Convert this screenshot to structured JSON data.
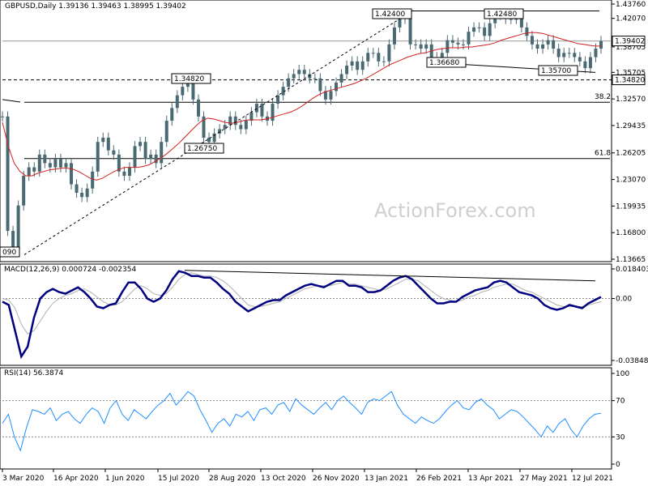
{
  "chart_header": "GBPUSD,Daily  1.39136 1.39463 1.38995 1.39402",
  "watermark": "ActionForex.com",
  "colors": {
    "candle": "#4a6a73",
    "ma": "#d12020",
    "macd": "#000080",
    "signal": "#b0b0b0",
    "rsi": "#1f8fff",
    "grid": "#c0c0c0"
  },
  "chart_data": [
    {
      "type": "candlestick",
      "title": "GBPUSD,Daily",
      "ohlc_last": {
        "open": 1.39136,
        "high": 1.39463,
        "low": 1.38995,
        "close": 1.39402
      },
      "x_ticks": [
        "3 Mar 2020",
        "16 Apr 2020",
        "1 Jun 2020",
        "15 Jul 2020",
        "28 Aug 2020",
        "13 Oct 2020",
        "26 Nov 2020",
        "13 Jan 2021",
        "26 Feb 2021",
        "13 Apr 2021",
        "27 May 2021",
        "12 Jul 2021"
      ],
      "y_ticks": [
        1.4376,
        1.4207,
        1.38705,
        1.35705,
        1.3257,
        1.29435,
        1.26205,
        1.2307,
        1.19935,
        1.168,
        1.13665
      ],
      "ylim": [
        1.13665,
        1.4376
      ],
      "current_price": 1.39402,
      "current_price_label": "1.39402",
      "level_label": "1.34820",
      "fib_labels": [
        {
          "label": "38.2",
          "value": 1.3218
        },
        {
          "label": "61.8",
          "value": 1.2554
        }
      ],
      "annotations": [
        {
          "label": "1.42400",
          "value": 1.424
        },
        {
          "label": "1.42480",
          "value": 1.4248
        },
        {
          "label": "1.34820",
          "value": 1.3482
        },
        {
          "label": "1.36680",
          "value": 1.3668
        },
        {
          "label": "1.35700",
          "value": 1.357
        },
        {
          "label": "1.26750",
          "value": 1.2675
        },
        {
          "label": "090",
          "value": 1.1409
        }
      ],
      "series": [
        {
          "name": "",
          "values": [
            1.305,
            1.17,
            1.148,
            1.2,
            1.235,
            1.245,
            1.24,
            1.26,
            1.25,
            1.245,
            1.255,
            1.245,
            1.25,
            1.225,
            1.215,
            1.21,
            1.22,
            1.24,
            1.275,
            1.28,
            1.265,
            1.26,
            1.24,
            1.235,
            1.245,
            1.27,
            1.275,
            1.255,
            1.26,
            1.25,
            1.275,
            1.3,
            1.315,
            1.33,
            1.34,
            1.35,
            1.325,
            1.305,
            1.28,
            1.275,
            1.285,
            1.29,
            1.295,
            1.305,
            1.295,
            1.29,
            1.3,
            1.31,
            1.32,
            1.305,
            1.3,
            1.32,
            1.33,
            1.34,
            1.35,
            1.355,
            1.36,
            1.355,
            1.35,
            1.35,
            1.335,
            1.325,
            1.335,
            1.345,
            1.355,
            1.365,
            1.37,
            1.36,
            1.37,
            1.38,
            1.38,
            1.37,
            1.37,
            1.39,
            1.41,
            1.42,
            1.424,
            1.39,
            1.39,
            1.385,
            1.39,
            1.375,
            1.37,
            1.38,
            1.395,
            1.392,
            1.39,
            1.39,
            1.405,
            1.41,
            1.41,
            1.4,
            1.415,
            1.425,
            1.4248,
            1.42,
            1.42,
            1.42,
            1.41,
            1.4,
            1.39,
            1.385,
            1.39,
            1.395,
            1.385,
            1.375,
            1.38,
            1.38,
            1.375,
            1.37,
            1.362,
            1.375,
            1.385,
            1.394
          ]
        },
        {
          "name": "",
          "values": [
            1.298,
            1.27,
            1.25,
            1.24,
            1.235,
            1.235,
            1.238,
            1.24,
            1.242,
            1.243,
            1.244,
            1.244,
            1.243,
            1.24,
            1.236,
            1.232,
            1.23,
            1.232,
            1.236,
            1.24,
            1.243,
            1.245,
            1.245,
            1.245,
            1.246,
            1.248,
            1.252,
            1.256,
            1.261,
            1.267,
            1.273,
            1.28,
            1.287,
            1.294,
            1.3,
            1.303,
            1.302,
            1.3,
            1.298,
            1.297,
            1.298,
            1.3,
            1.301,
            1.301,
            1.301,
            1.302,
            1.304,
            1.306,
            1.308,
            1.31,
            1.313,
            1.317,
            1.322,
            1.327,
            1.331,
            1.334,
            1.336,
            1.338,
            1.34,
            1.342,
            1.344,
            1.347,
            1.35,
            1.354,
            1.358,
            1.362,
            1.366,
            1.369,
            1.372,
            1.375,
            1.377,
            1.379,
            1.38,
            1.382,
            1.384,
            1.385,
            1.386,
            1.386,
            1.386,
            1.387,
            1.387,
            1.388,
            1.389,
            1.39,
            1.392,
            1.395,
            1.397,
            1.399,
            1.401,
            1.403,
            1.404,
            1.404,
            1.403,
            1.401,
            1.399,
            1.397,
            1.395,
            1.393,
            1.391,
            1.39,
            1.389,
            1.388,
            1.388
          ]
        }
      ]
    },
    {
      "type": "line",
      "title": "MACD(12,26,9) 0.000724 -0.002354",
      "y_ticks": [
        0.018403,
        0.0,
        -0.038483
      ],
      "y_tick_labels": [
        "0.018403",
        "0.00",
        "-0.038483"
      ],
      "ylim": [
        -0.038483,
        0.018403
      ],
      "series": [
        {
          "name": "",
          "values": [
            -0.002,
            -0.004,
            -0.02,
            -0.036,
            -0.03,
            -0.012,
            0.0,
            0.004,
            0.006,
            0.004,
            0.003,
            0.005,
            0.007,
            0.004,
            0.0,
            -0.005,
            -0.006,
            -0.004,
            -0.003,
            0.004,
            0.01,
            0.01,
            0.006,
            0.0,
            -0.002,
            0.0,
            0.005,
            0.012,
            0.017,
            0.016,
            0.014,
            0.014,
            0.013,
            0.013,
            0.01,
            0.006,
            0.003,
            -0.002,
            -0.005,
            -0.008,
            -0.006,
            -0.004,
            -0.002,
            -0.001,
            -0.001,
            0.002,
            0.004,
            0.006,
            0.008,
            0.009,
            0.008,
            0.007,
            0.009,
            0.011,
            0.011,
            0.008,
            0.008,
            0.007,
            0.004,
            0.004,
            0.005,
            0.008,
            0.011,
            0.013,
            0.014,
            0.012,
            0.008,
            0.004,
            0.0,
            -0.003,
            -0.003,
            -0.002,
            -0.002,
            0.001,
            0.003,
            0.005,
            0.006,
            0.007,
            0.01,
            0.011,
            0.01,
            0.007,
            0.004,
            0.003,
            0.002,
            0.0,
            -0.004,
            -0.006,
            -0.007,
            -0.006,
            -0.004,
            -0.005,
            -0.006,
            -0.003,
            -0.001,
            0.001
          ]
        },
        {
          "name": "",
          "values": [
            0.0,
            -0.001,
            -0.006,
            -0.016,
            -0.022,
            -0.02,
            -0.014,
            -0.008,
            -0.003,
            0.0,
            0.002,
            0.003,
            0.005,
            0.006,
            0.004,
            0.001,
            -0.002,
            -0.004,
            -0.004,
            -0.002,
            0.002,
            0.006,
            0.008,
            0.006,
            0.003,
            0.002,
            0.003,
            0.007,
            0.012,
            0.015,
            0.016,
            0.015,
            0.014,
            0.014,
            0.013,
            0.011,
            0.008,
            0.004,
            0.0,
            -0.004,
            -0.005,
            -0.005,
            -0.004,
            -0.003,
            -0.002,
            0.0,
            0.002,
            0.004,
            0.006,
            0.007,
            0.008,
            0.008,
            0.008,
            0.009,
            0.01,
            0.009,
            0.009,
            0.008,
            0.007,
            0.006,
            0.005,
            0.006,
            0.008,
            0.01,
            0.012,
            0.012,
            0.011,
            0.008,
            0.005,
            0.002,
            0.0,
            -0.001,
            -0.002,
            -0.001,
            0.001,
            0.002,
            0.004,
            0.005,
            0.007,
            0.008,
            0.009,
            0.009,
            0.007,
            0.005,
            0.004,
            0.002,
            0.0,
            -0.002,
            -0.004,
            -0.005,
            -0.005,
            -0.005,
            -0.005,
            -0.004,
            -0.003,
            -0.002
          ]
        }
      ]
    },
    {
      "type": "line",
      "title": "RSI(14) 56.3874",
      "y_ticks": [
        100,
        70,
        30,
        0
      ],
      "ylim": [
        0,
        100
      ],
      "series": [
        {
          "name": "",
          "values": [
            45,
            55,
            30,
            15,
            40,
            60,
            58,
            55,
            62,
            48,
            55,
            58,
            50,
            45,
            55,
            62,
            58,
            45,
            62,
            70,
            55,
            48,
            60,
            55,
            50,
            58,
            65,
            70,
            78,
            65,
            72,
            80,
            75,
            60,
            48,
            35,
            45,
            50,
            42,
            55,
            52,
            58,
            48,
            60,
            62,
            55,
            65,
            68,
            58,
            72,
            65,
            60,
            55,
            62,
            68,
            60,
            70,
            75,
            68,
            62,
            55,
            68,
            72,
            70,
            75,
            80,
            65,
            55,
            50,
            45,
            52,
            48,
            45,
            50,
            58,
            65,
            70,
            62,
            60,
            68,
            72,
            65,
            60,
            50,
            55,
            60,
            58,
            52,
            45,
            38,
            30,
            42,
            35,
            45,
            50,
            38,
            30,
            42,
            50,
            55,
            56
          ]
        }
      ]
    }
  ]
}
